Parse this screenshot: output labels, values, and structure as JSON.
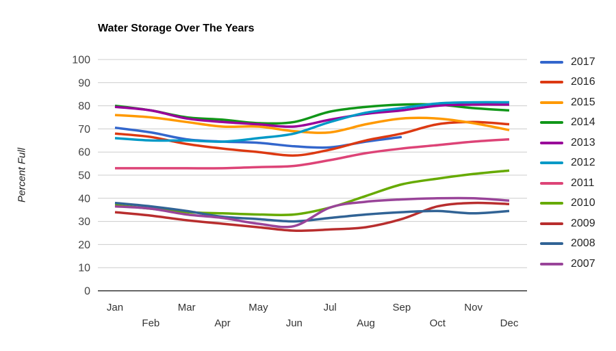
{
  "chart": {
    "title": "Water Storage Over The Years",
    "ylabel": "Percent Full"
  },
  "chart_data": {
    "type": "line",
    "title": "Water Storage Over The Years",
    "xlabel": "",
    "ylabel": "Percent Full",
    "ylim": [
      0,
      100
    ],
    "y_ticks": [
      0,
      10,
      20,
      30,
      40,
      50,
      60,
      70,
      80,
      90,
      100
    ],
    "grid": true,
    "legend_position": "right",
    "curve": "smooth",
    "categories": [
      "Jan",
      "Feb",
      "Mar",
      "Apr",
      "May",
      "Jun",
      "Jul",
      "Aug",
      "Sep",
      "Oct",
      "Nov",
      "Dec"
    ],
    "series": [
      {
        "name": "2017",
        "color": "#3366cc",
        "values": [
          70.5,
          68.5,
          65.5,
          64.5,
          64,
          62.5,
          62,
          64.5,
          66.5,
          null,
          null,
          null
        ]
      },
      {
        "name": "2016",
        "color": "#dc3912",
        "values": [
          68,
          66.5,
          63.5,
          61.5,
          60,
          58.5,
          61,
          65,
          68,
          72,
          73,
          72
        ]
      },
      {
        "name": "2015",
        "color": "#ff9900",
        "values": [
          76,
          75,
          73,
          71,
          71,
          69,
          68.5,
          72,
          74.5,
          74.5,
          72.5,
          69.5
        ]
      },
      {
        "name": "2014",
        "color": "#109618",
        "values": [
          80,
          78,
          75,
          74,
          72.5,
          73,
          77.5,
          79.5,
          80.5,
          80.5,
          79,
          78
        ]
      },
      {
        "name": "2013",
        "color": "#990099",
        "values": [
          79.5,
          78,
          74.5,
          73,
          72,
          71,
          74,
          76.5,
          78,
          80,
          80.5,
          80.5
        ]
      },
      {
        "name": "2012",
        "color": "#0099c6",
        "values": [
          66,
          65,
          65,
          64.5,
          66,
          68,
          73,
          77,
          79,
          81,
          81.5,
          81.5
        ]
      },
      {
        "name": "2011",
        "color": "#dd4477",
        "values": [
          53,
          53,
          53,
          53,
          53.5,
          54,
          56.5,
          59.5,
          61.5,
          63,
          64.5,
          65.5
        ]
      },
      {
        "name": "2010",
        "color": "#66aa00",
        "values": [
          37,
          35.5,
          34,
          33.5,
          33,
          33,
          36,
          41,
          46,
          48.5,
          50.5,
          52
        ]
      },
      {
        "name": "2009",
        "color": "#b82e2e",
        "values": [
          34,
          32.5,
          30.5,
          29,
          27.5,
          26,
          26.5,
          27.5,
          31,
          36.5,
          38,
          37.5
        ]
      },
      {
        "name": "2008",
        "color": "#316395",
        "values": [
          38,
          36.5,
          34.5,
          32,
          31,
          30,
          31.5,
          33,
          34,
          34.5,
          33.5,
          34.5
        ]
      },
      {
        "name": "2007",
        "color": "#994499",
        "values": [
          36.5,
          35.5,
          33,
          31.5,
          29,
          28,
          36,
          38.5,
          39.5,
          40,
          40,
          39
        ]
      }
    ],
    "style": {
      "grid_color": "#cccccc",
      "baseline_color": "#333333",
      "tick_label_color": "#444444",
      "month_label_color": "#333333"
    }
  }
}
